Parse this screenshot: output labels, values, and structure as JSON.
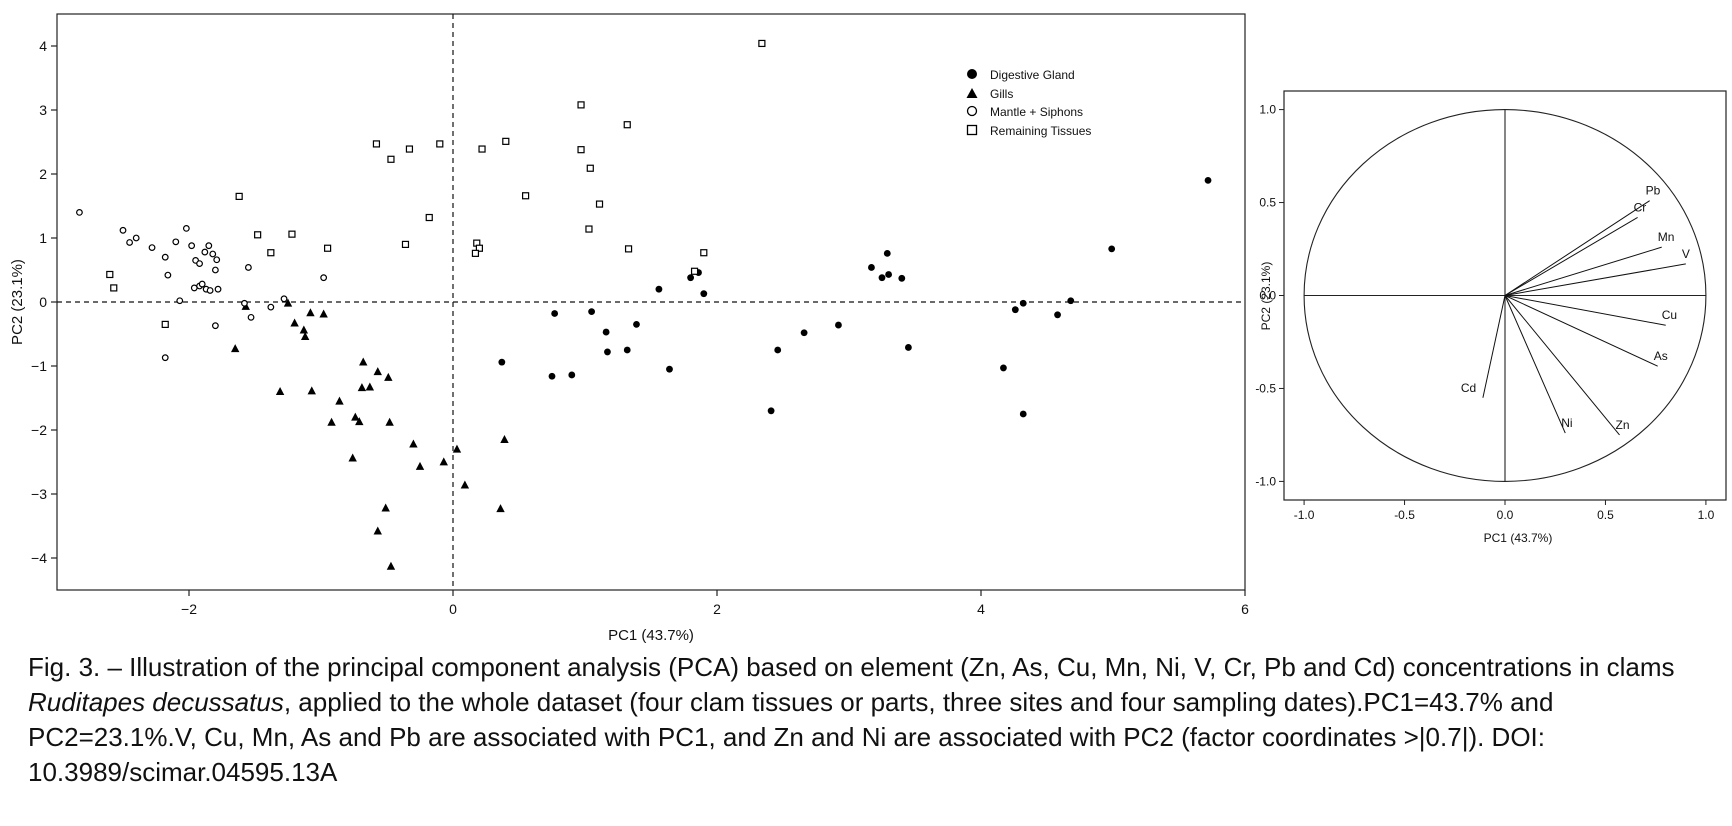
{
  "chart_data": [
    {
      "type": "scatter",
      "xlabel": "PC1 (43.7%)",
      "ylabel": "PC2 (23.1%)",
      "xlim": [
        -3,
        6
      ],
      "ylim": [
        -4.5,
        4.5
      ],
      "xticks": [
        "-2",
        "0",
        "2",
        "4",
        "6"
      ],
      "yticks": [
        "4",
        "3",
        "2",
        "1",
        "0",
        "-1",
        "-2",
        "-3",
        "-4"
      ],
      "grid": false,
      "reference_lines": "dashed at x=0 and y=0",
      "legend_position": "top-right",
      "series": [
        {
          "name": "Digestive Gland",
          "marker": "filled-circle",
          "points": [
            [
              5.72,
              1.9
            ],
            [
              4.99,
              0.83
            ],
            [
              4.68,
              0.02
            ],
            [
              4.32,
              -0.02
            ],
            [
              4.26,
              -0.12
            ],
            [
              4.58,
              -0.2
            ],
            [
              4.17,
              -1.03
            ],
            [
              4.32,
              -1.75
            ],
            [
              3.29,
              0.76
            ],
            [
              3.17,
              0.54
            ],
            [
              3.25,
              0.38
            ],
            [
              3.3,
              0.43
            ],
            [
              3.4,
              0.37
            ],
            [
              3.45,
              -0.71
            ],
            [
              2.92,
              -0.36
            ],
            [
              2.66,
              -0.48
            ],
            [
              2.46,
              -0.75
            ],
            [
              2.41,
              -1.7
            ],
            [
              1.9,
              0.13
            ],
            [
              1.8,
              0.38
            ],
            [
              1.86,
              0.46
            ],
            [
              1.56,
              0.2
            ],
            [
              1.64,
              -1.05
            ],
            [
              1.39,
              -0.35
            ],
            [
              1.32,
              -0.75
            ],
            [
              1.16,
              -0.47
            ],
            [
              1.17,
              -0.78
            ],
            [
              1.05,
              -0.15
            ],
            [
              0.77,
              -0.18
            ],
            [
              0.37,
              -0.94
            ],
            [
              0.9,
              -1.14
            ],
            [
              0.75,
              -1.16
            ]
          ]
        },
        {
          "name": "Gills",
          "marker": "filled-triangle",
          "points": [
            [
              -1.57,
              -0.07
            ],
            [
              -1.25,
              -0.02
            ],
            [
              -1.2,
              -0.33
            ],
            [
              -1.13,
              -0.44
            ],
            [
              -1.12,
              -0.54
            ],
            [
              -1.08,
              -0.17
            ],
            [
              -0.98,
              -0.19
            ],
            [
              -1.65,
              -0.73
            ],
            [
              -1.31,
              -1.4
            ],
            [
              -1.07,
              -1.39
            ],
            [
              -0.86,
              -1.55
            ],
            [
              -0.92,
              -1.88
            ],
            [
              -0.68,
              -0.94
            ],
            [
              -0.69,
              -1.34
            ],
            [
              -0.63,
              -1.33
            ],
            [
              -0.57,
              -1.09
            ],
            [
              -0.49,
              -1.18
            ],
            [
              -0.74,
              -1.8
            ],
            [
              -0.71,
              -1.87
            ],
            [
              -0.48,
              -1.88
            ],
            [
              -0.76,
              -2.44
            ],
            [
              -0.3,
              -2.22
            ],
            [
              -0.25,
              -2.57
            ],
            [
              -0.07,
              -2.5
            ],
            [
              0.03,
              -2.3
            ],
            [
              0.09,
              -2.86
            ],
            [
              0.39,
              -2.15
            ],
            [
              0.36,
              -3.23
            ],
            [
              -0.51,
              -3.22
            ],
            [
              -0.57,
              -3.58
            ],
            [
              -0.47,
              -4.13
            ]
          ]
        },
        {
          "name": "Mantle + Siphons",
          "marker": "open-circle",
          "points": [
            [
              -2.83,
              1.4
            ],
            [
              -2.5,
              1.12
            ],
            [
              -2.45,
              0.93
            ],
            [
              -2.4,
              1.0
            ],
            [
              -2.28,
              0.85
            ],
            [
              -2.18,
              0.7
            ],
            [
              -2.16,
              0.42
            ],
            [
              -2.1,
              0.94
            ],
            [
              -2.02,
              1.15
            ],
            [
              -1.98,
              0.88
            ],
            [
              -1.95,
              0.65
            ],
            [
              -1.92,
              0.6
            ],
            [
              -1.88,
              0.78
            ],
            [
              -1.85,
              0.88
            ],
            [
              -1.82,
              0.75
            ],
            [
              -1.8,
              0.5
            ],
            [
              -1.79,
              0.66
            ],
            [
              -1.92,
              0.25
            ],
            [
              -1.9,
              0.28
            ],
            [
              -1.87,
              0.2
            ],
            [
              -1.84,
              0.18
            ],
            [
              -1.78,
              0.2
            ],
            [
              -1.96,
              0.22
            ],
            [
              -2.07,
              0.02
            ],
            [
              -1.55,
              0.54
            ],
            [
              -1.58,
              -0.02
            ],
            [
              -1.53,
              -0.24
            ],
            [
              -1.38,
              -0.08
            ],
            [
              -1.28,
              0.05
            ],
            [
              -0.98,
              0.38
            ],
            [
              -1.8,
              -0.37
            ],
            [
              -2.18,
              -0.87
            ]
          ]
        },
        {
          "name": "Remaining Tissues",
          "marker": "open-square",
          "points": [
            [
              -2.6,
              0.43
            ],
            [
              -2.57,
              0.22
            ],
            [
              -2.18,
              -0.35
            ],
            [
              -1.62,
              1.65
            ],
            [
              -1.48,
              1.05
            ],
            [
              -1.38,
              0.77
            ],
            [
              -1.22,
              1.06
            ],
            [
              -0.95,
              0.84
            ],
            [
              -0.58,
              2.47
            ],
            [
              -0.47,
              2.23
            ],
            [
              -0.33,
              2.39
            ],
            [
              -0.36,
              0.9
            ],
            [
              -0.18,
              1.32
            ],
            [
              -0.1,
              2.47
            ],
            [
              0.22,
              2.39
            ],
            [
              0.4,
              2.51
            ],
            [
              0.18,
              0.92
            ],
            [
              0.2,
              0.84
            ],
            [
              0.17,
              0.76
            ],
            [
              0.55,
              1.66
            ],
            [
              0.97,
              3.08
            ],
            [
              0.97,
              2.38
            ],
            [
              1.04,
              2.09
            ],
            [
              1.11,
              1.53
            ],
            [
              1.03,
              1.14
            ],
            [
              1.32,
              2.77
            ],
            [
              1.33,
              0.83
            ],
            [
              1.9,
              0.77
            ],
            [
              1.83,
              0.48
            ],
            [
              2.34,
              4.04
            ]
          ]
        }
      ]
    },
    {
      "type": "line",
      "subtype": "correlation-circle",
      "xlabel": "PC1 (43.7%)",
      "ylabel": "PC2 (23.1%)",
      "xlim": [
        -1.1,
        1.1
      ],
      "ylim": [
        -1.1,
        1.1
      ],
      "xticks": [
        "-1.0",
        "-0.5",
        "0.0",
        "0.5",
        "1.0"
      ],
      "yticks": [
        "1.0",
        "0.5",
        "0.0",
        "-0.5",
        "-1.0"
      ],
      "vectors": [
        {
          "name": "Pb",
          "x": 0.72,
          "y": 0.51
        },
        {
          "name": "Cr",
          "x": 0.66,
          "y": 0.42
        },
        {
          "name": "Mn",
          "x": 0.78,
          "y": 0.26
        },
        {
          "name": "V",
          "x": 0.9,
          "y": 0.17
        },
        {
          "name": "Cu",
          "x": 0.8,
          "y": -0.16
        },
        {
          "name": "As",
          "x": 0.76,
          "y": -0.38
        },
        {
          "name": "Zn",
          "x": 0.57,
          "y": -0.75
        },
        {
          "name": "Ni",
          "x": 0.3,
          "y": -0.74
        },
        {
          "name": "Cd",
          "x": -0.11,
          "y": -0.55
        }
      ]
    }
  ],
  "legend": {
    "dg": "Digestive Gland",
    "gills": "Gills",
    "mantle": "Mantle + Siphons",
    "remaining": "Remaining Tissues"
  },
  "caption": {
    "part1": "Fig. 3. – Illustration of the principal component analysis (PCA) based on element (Zn, As, Cu, Mn, Ni, V, Cr, Pb and Cd) concentrations in clams ",
    "species": "Ruditapes decussatus",
    "part2": ", applied to the whole dataset (four clam tissues or parts, three sites and four sampling dates).PC1=43.7% and PC2=23.1%.V, Cu, Mn, As and Pb are associated with PC1, and Zn and Ni are associated with PC2 (factor coordinates >|0.7|). DOI: 10.3989/scimar.04595.13A"
  }
}
